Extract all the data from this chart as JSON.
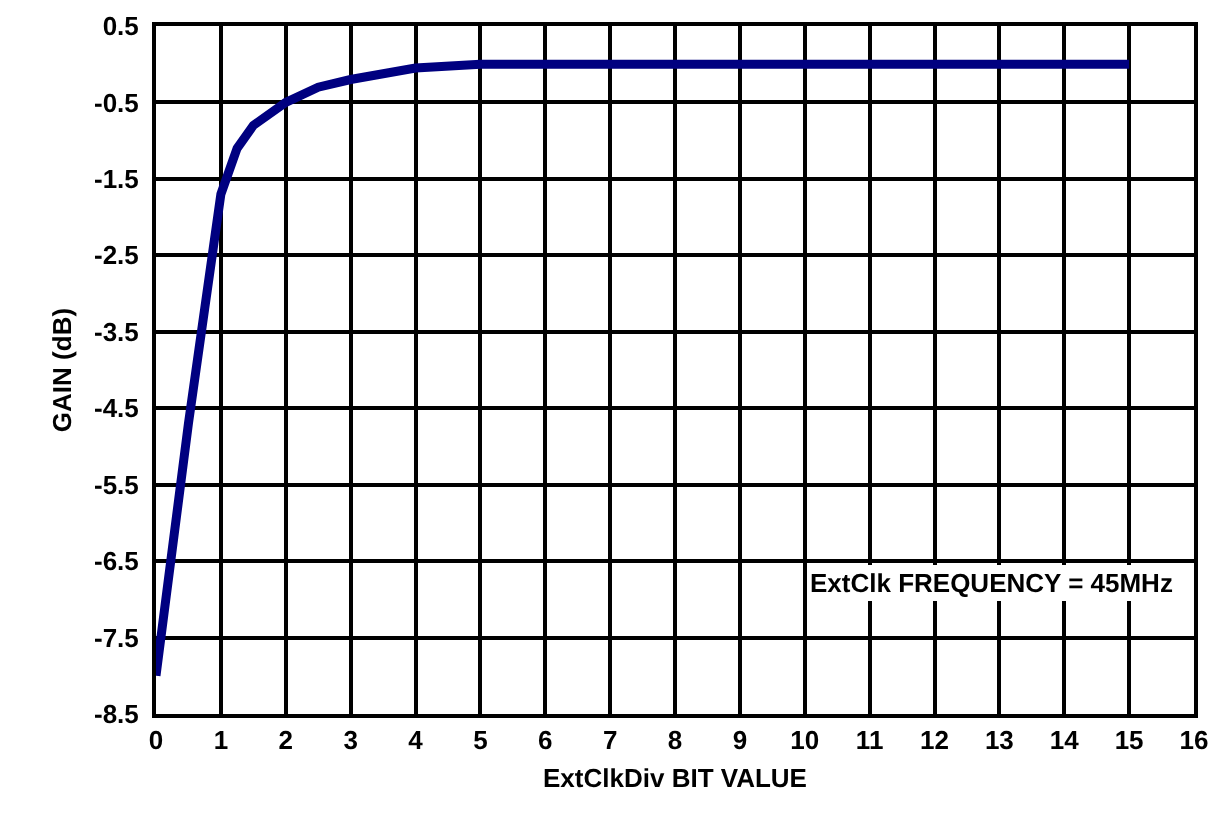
{
  "chart_data": {
    "type": "line",
    "xlabel": "ExtClkDiv BIT VALUE",
    "ylabel": "GAIN (dB)",
    "annotations": [
      "ExtClk FREQUENCY = 45MHz"
    ],
    "x": [
      0,
      0.5,
      0.75,
      1,
      1.25,
      1.5,
      2,
      2.5,
      3,
      4,
      5,
      6,
      7,
      8,
      9,
      10,
      11,
      12,
      13,
      14,
      15
    ],
    "series": [
      {
        "color": "#000080",
        "values": [
          -8.0,
          -4.7,
          -3.2,
          -1.7,
          -1.1,
          -0.8,
          -0.5,
          -0.3,
          -0.2,
          -0.05,
          0,
          0,
          0,
          0,
          0,
          0,
          0,
          0,
          0,
          0,
          0
        ]
      }
    ],
    "xlim": [
      0,
      16
    ],
    "xticks": [
      0,
      1,
      2,
      3,
      4,
      5,
      6,
      7,
      8,
      9,
      10,
      11,
      12,
      13,
      14,
      15,
      16
    ],
    "ylim": [
      -8.5,
      0.5
    ],
    "yticks": [
      -8.5,
      -7.5,
      -6.5,
      -5.5,
      -4.5,
      -3.5,
      -2.5,
      -1.5,
      -0.5,
      0.5
    ],
    "grid": true,
    "marker": "none",
    "line_style": "solid"
  }
}
